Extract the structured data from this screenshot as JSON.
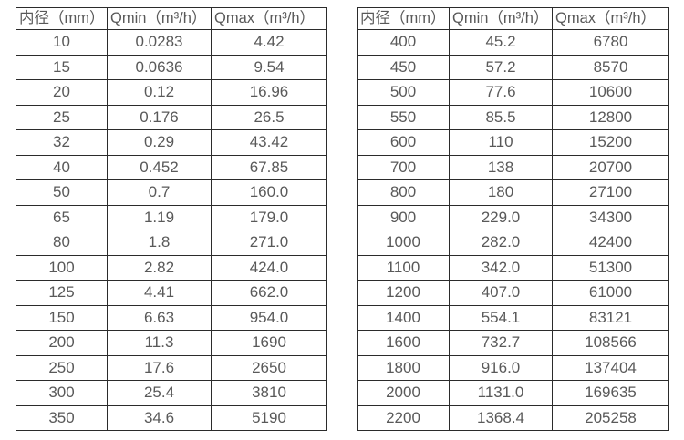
{
  "colors": {
    "background": "#ffffff",
    "border": "#2b2b2b",
    "text": "#595959"
  },
  "tables": [
    {
      "name": "small-diameters",
      "headers": [
        "内径（mm）",
        "Qmin（m³/h）",
        "Qmax（m³/h）"
      ],
      "rows": [
        [
          "10",
          "0.0283",
          "4.42"
        ],
        [
          "15",
          "0.0636",
          "9.54"
        ],
        [
          "20",
          "0.12",
          "16.96"
        ],
        [
          "25",
          "0.176",
          "26.5"
        ],
        [
          "32",
          "0.29",
          "43.42"
        ],
        [
          "40",
          "0.452",
          "67.85"
        ],
        [
          "50",
          "0.7",
          "160.0"
        ],
        [
          "65",
          "1.19",
          "179.0"
        ],
        [
          "80",
          "1.8",
          "271.0"
        ],
        [
          "100",
          "2.82",
          "424.0"
        ],
        [
          "125",
          "4.41",
          "662.0"
        ],
        [
          "150",
          "6.63",
          "954.0"
        ],
        [
          "200",
          "11.3",
          "1690"
        ],
        [
          "250",
          "17.6",
          "2650"
        ],
        [
          "300",
          "25.4",
          "3810"
        ],
        [
          "350",
          "34.6",
          "5190"
        ]
      ]
    },
    {
      "name": "large-diameters",
      "headers": [
        "内径（mm）",
        "Qmin（m³/h）",
        "Qmax（m³/h）"
      ],
      "rows": [
        [
          "400",
          "45.2",
          "6780"
        ],
        [
          "450",
          "57.2",
          "8570"
        ],
        [
          "500",
          "77.6",
          "10600"
        ],
        [
          "550",
          "85.5",
          "12800"
        ],
        [
          "600",
          "110",
          "15200"
        ],
        [
          "700",
          "138",
          "20700"
        ],
        [
          "800",
          "180",
          "27100"
        ],
        [
          "900",
          "229.0",
          "34300"
        ],
        [
          "1000",
          "282.0",
          "42400"
        ],
        [
          "1100",
          "342.0",
          "51300"
        ],
        [
          "1200",
          "407.0",
          "61000"
        ],
        [
          "1400",
          "554.1",
          "83121"
        ],
        [
          "1600",
          "732.7",
          "108566"
        ],
        [
          "1800",
          "916.0",
          "137404"
        ],
        [
          "2000",
          "1131.0",
          "169635"
        ],
        [
          "2200",
          "1368.4",
          "205258"
        ]
      ]
    }
  ]
}
